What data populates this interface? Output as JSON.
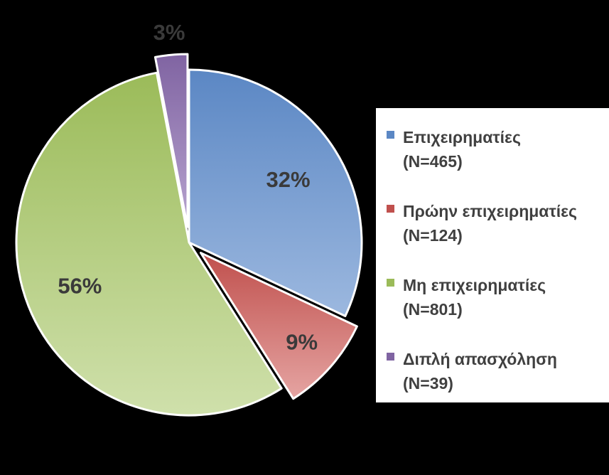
{
  "chart_data": {
    "type": "pie",
    "slices": [
      {
        "label": "32%",
        "value": 32,
        "color": "#5b87c4",
        "color_light": "#9cb8df",
        "exploded": false
      },
      {
        "label": "9%",
        "value": 9,
        "color": "#c0504d",
        "color_light": "#e5a4a2",
        "exploded": true
      },
      {
        "label": "56%",
        "value": 56,
        "color": "#9bbb59",
        "color_light": "#cfe0ab",
        "exploded": false
      },
      {
        "label": "3%",
        "value": 3,
        "color": "#8064a2",
        "color_light": "#b7a3cf",
        "exploded": true
      }
    ],
    "legend": {
      "placement": "right",
      "entries": [
        {
          "name": "Επιχειρηματίες",
          "count": "(N=465)",
          "color": "#5b87c4"
        },
        {
          "name": "Πρώην επιχειρηματίες",
          "count": "(N=124)",
          "color": "#c0504d"
        },
        {
          "name": "Μη επιχειρηματίες",
          "count": "(N=801)",
          "color": "#9bbb59"
        },
        {
          "name": "Διπλή απασχόληση",
          "count": "(N=39)",
          "color": "#8064a2"
        }
      ]
    }
  }
}
